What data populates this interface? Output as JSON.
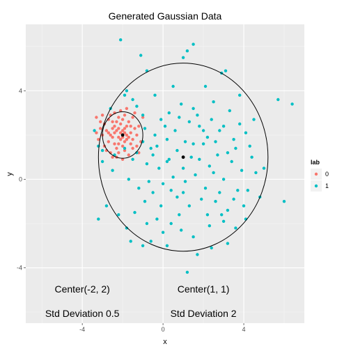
{
  "chart_data": {
    "type": "scatter",
    "title": "Generated Gaussian Data",
    "xlabel": "x",
    "ylabel": "y",
    "xlim": [
      -6.8,
      7.0
    ],
    "ylim": [
      -6.5,
      7.0
    ],
    "x_ticks": [
      -4,
      0,
      4
    ],
    "y_ticks": [
      -4,
      0,
      4
    ],
    "x_minor": [
      -6,
      -2,
      2,
      6
    ],
    "y_minor": [
      -6,
      -2,
      2,
      6
    ],
    "grid": true,
    "legend": {
      "title": "lab",
      "position": "right",
      "entries": [
        {
          "label": "0",
          "color": "#F8766D"
        },
        {
          "label": "1",
          "color": "#00BFC4"
        }
      ]
    },
    "ellipses": [
      {
        "cx": -2,
        "cy": 2,
        "rx": 1.0,
        "ry": 1.05
      },
      {
        "cx": 1,
        "cy": 1,
        "rx": 4.2,
        "ry": 4.25
      }
    ],
    "centers": [
      [
        -2,
        2
      ],
      [
        1,
        1
      ]
    ],
    "annotations": [
      {
        "text": "Center(-2, 2)",
        "x": -4.0,
        "y": -5.0
      },
      {
        "text": "Std Deviation 0.5",
        "x": -4.0,
        "y": -6.1
      },
      {
        "text": "Center(1, 1)",
        "x": 2.0,
        "y": -5.0
      },
      {
        "text": "Std Deviation 2",
        "x": 2.0,
        "y": -6.1
      }
    ],
    "series": [
      {
        "name": "0",
        "color": "#F8766D",
        "points": [
          [
            -2.0,
            2.0
          ],
          [
            -2.3,
            2.2
          ],
          [
            -1.8,
            1.8
          ],
          [
            -2.1,
            2.5
          ],
          [
            -2.5,
            1.9
          ],
          [
            -1.6,
            2.1
          ],
          [
            -2.2,
            1.6
          ],
          [
            -1.9,
            2.3
          ],
          [
            -2.4,
            2.4
          ],
          [
            -2.0,
            1.5
          ],
          [
            -1.7,
            2.6
          ],
          [
            -2.6,
            2.0
          ],
          [
            -1.5,
            1.8
          ],
          [
            -2.2,
            2.8
          ],
          [
            -2.8,
            2.2
          ],
          [
            -1.9,
            1.3
          ],
          [
            -2.3,
            1.4
          ],
          [
            -1.4,
            2.3
          ],
          [
            -2.7,
            1.7
          ],
          [
            -2.1,
            2.1
          ],
          [
            -1.8,
            2.4
          ],
          [
            -2.4,
            1.6
          ],
          [
            -2.0,
            2.7
          ],
          [
            -1.6,
            1.6
          ],
          [
            -2.5,
            2.6
          ],
          [
            -3.0,
            2.0
          ],
          [
            -1.3,
            2.0
          ],
          [
            -2.2,
            1.2
          ],
          [
            -1.9,
            2.9
          ],
          [
            -2.6,
            2.9
          ],
          [
            -2.9,
            2.5
          ],
          [
            -1.2,
            2.4
          ],
          [
            -2.3,
            1.0
          ],
          [
            -1.7,
            1.1
          ],
          [
            -3.1,
            2.6
          ],
          [
            -1.5,
            2.8
          ],
          [
            -2.8,
            1.3
          ],
          [
            -2.1,
            3.1
          ],
          [
            -1.1,
            1.7
          ],
          [
            -3.2,
            1.8
          ],
          [
            -2.0,
            1.9
          ],
          [
            -2.2,
            2.3
          ],
          [
            -1.8,
            2.0
          ],
          [
            -2.4,
            2.1
          ],
          [
            -1.9,
            1.7
          ],
          [
            -2.1,
            1.8
          ],
          [
            -2.3,
            2.6
          ],
          [
            -1.7,
            1.9
          ],
          [
            -2.5,
            2.3
          ],
          [
            -2.0,
            2.2
          ],
          [
            -1.6,
            2.4
          ],
          [
            -2.7,
            2.1
          ],
          [
            -1.9,
            2.1
          ],
          [
            -2.2,
            1.9
          ],
          [
            -3.3,
            2.8
          ],
          [
            -1.4,
            3.0
          ],
          [
            -2.9,
            1.5
          ],
          [
            -1.5,
            1.4
          ],
          [
            -2.6,
            1.2
          ],
          [
            -3.0,
            2.9
          ],
          [
            -2.0,
            0.9
          ],
          [
            -2.4,
            3.0
          ],
          [
            -1.3,
            1.5
          ],
          [
            -3.1,
            2.3
          ],
          [
            -1.0,
            2.8
          ],
          [
            -2.7,
            2.7
          ],
          [
            -1.8,
            3.2
          ],
          [
            -2.5,
            1.0
          ],
          [
            -1.2,
            1.2
          ],
          [
            -3.3,
            2.1
          ]
        ]
      },
      {
        "name": "1",
        "color": "#00BFC4",
        "points": [
          [
            -2.1,
            6.3
          ],
          [
            -1.1,
            5.6
          ],
          [
            -0.8,
            4.9
          ],
          [
            1.0,
            5.5
          ],
          [
            1.2,
            5.8
          ],
          [
            1.5,
            6.1
          ],
          [
            2.9,
            4.8
          ],
          [
            3.1,
            4.9
          ],
          [
            5.7,
            3.6
          ],
          [
            6.4,
            3.4
          ],
          [
            -1.8,
            4.0
          ],
          [
            -1.5,
            3.6
          ],
          [
            -1.9,
            3.8
          ],
          [
            0.3,
            3.0
          ],
          [
            0.8,
            2.8
          ],
          [
            1.5,
            3.2
          ],
          [
            2.5,
            3.5
          ],
          [
            3.3,
            3.1
          ],
          [
            3.8,
            2.5
          ],
          [
            4.1,
            2.1
          ],
          [
            3.5,
            1.8
          ],
          [
            2.8,
            2.2
          ],
          [
            2.2,
            1.9
          ],
          [
            1.8,
            2.4
          ],
          [
            1.1,
            1.7
          ],
          [
            0.7,
            1.3
          ],
          [
            0.3,
            0.9
          ],
          [
            -0.2,
            0.5
          ],
          [
            -0.6,
            1.4
          ],
          [
            -1.0,
            1.7
          ],
          [
            -1.3,
            1.2
          ],
          [
            -0.4,
            2.0
          ],
          [
            -0.9,
            2.3
          ],
          [
            0.1,
            2.4
          ],
          [
            0.6,
            2.2
          ],
          [
            1.3,
            2.6
          ],
          [
            2.0,
            1.6
          ],
          [
            2.7,
            1.1
          ],
          [
            3.4,
            0.8
          ],
          [
            3.9,
            0.4
          ],
          [
            4.2,
            -0.5
          ],
          [
            4.6,
            0.3
          ],
          [
            4.8,
            -0.8
          ],
          [
            4.0,
            -1.2
          ],
          [
            3.2,
            -1.4
          ],
          [
            2.6,
            -1.0
          ],
          [
            2.1,
            -0.4
          ],
          [
            1.6,
            0.2
          ],
          [
            1.0,
            0.5
          ],
          [
            0.5,
            0.1
          ],
          [
            0.0,
            -0.2
          ],
          [
            -0.5,
            -0.6
          ],
          [
            -0.9,
            -1.0
          ],
          [
            -1.4,
            -1.5
          ],
          [
            -0.3,
            -1.8
          ],
          [
            0.4,
            -2.0
          ],
          [
            0.9,
            -2.3
          ],
          [
            1.5,
            -2.6
          ],
          [
            2.3,
            -2.1
          ],
          [
            3.0,
            -1.9
          ],
          [
            3.6,
            -2.2
          ],
          [
            3.2,
            -2.9
          ],
          [
            2.4,
            -3.1
          ],
          [
            1.7,
            -3.4
          ],
          [
            1.2,
            -4.2
          ],
          [
            0.2,
            -3.0
          ],
          [
            -0.6,
            -2.8
          ],
          [
            -1.0,
            -3.0
          ],
          [
            -1.8,
            -2.2
          ],
          [
            -2.2,
            -1.6
          ],
          [
            -2.8,
            -1.2
          ],
          [
            -3.2,
            -1.8
          ],
          [
            -3.4,
            2.2
          ],
          [
            -3.2,
            1.5
          ],
          [
            -3.0,
            0.8
          ],
          [
            -2.5,
            0.4
          ],
          [
            -1.7,
            0.0
          ],
          [
            -1.2,
            -0.4
          ],
          [
            -0.7,
            -0.1
          ],
          [
            0.2,
            0.8
          ],
          [
            1.4,
            1.0
          ],
          [
            2.5,
            0.3
          ],
          [
            3.0,
            0.0
          ],
          [
            3.7,
            -0.5
          ],
          [
            5.0,
            0.5
          ],
          [
            6.0,
            -1.0
          ],
          [
            4.3,
            1.5
          ],
          [
            4.5,
            2.7
          ],
          [
            3.8,
            3.8
          ],
          [
            2.1,
            4.2
          ],
          [
            0.5,
            4.2
          ],
          [
            -0.4,
            3.8
          ],
          [
            -1.3,
            3.3
          ],
          [
            -1.0,
            2.9
          ],
          [
            -0.1,
            2.7
          ],
          [
            0.9,
            3.4
          ],
          [
            1.7,
            2.9
          ],
          [
            2.4,
            2.7
          ],
          [
            3.0,
            2.4
          ],
          [
            3.6,
            1.4
          ],
          [
            4.4,
            1.0
          ],
          [
            2.8,
            -0.6
          ],
          [
            2.2,
            -1.6
          ],
          [
            1.3,
            -1.2
          ],
          [
            0.7,
            -0.8
          ],
          [
            -0.1,
            -1.2
          ],
          [
            -0.8,
            -2.0
          ],
          [
            -1.6,
            -2.8
          ],
          [
            1.8,
            0.9
          ],
          [
            1.1,
            -0.1
          ],
          [
            0.4,
            -0.5
          ],
          [
            -0.3,
            1.5
          ],
          [
            -0.8,
            0.7
          ],
          [
            2.0,
            2.2
          ],
          [
            2.6,
            1.7
          ],
          [
            3.2,
            1.2
          ],
          [
            1.5,
            1.6
          ],
          [
            0.2,
            1.8
          ],
          [
            -0.5,
            1.1
          ],
          [
            1.9,
            -0.9
          ],
          [
            2.9,
            -1.6
          ],
          [
            0.8,
            -1.6
          ],
          [
            -1.9,
            1.4
          ],
          [
            -1.5,
            0.9
          ],
          [
            0.0,
            -2.4
          ],
          [
            1.0,
            -0.6
          ],
          [
            2.3,
            0.6
          ],
          [
            3.5,
            -0.9
          ],
          [
            4.1,
            -1.8
          ],
          [
            -2.4,
            1.1
          ],
          [
            -3.0,
            1.3
          ],
          [
            -2.6,
            3.2
          ]
        ]
      }
    ]
  }
}
